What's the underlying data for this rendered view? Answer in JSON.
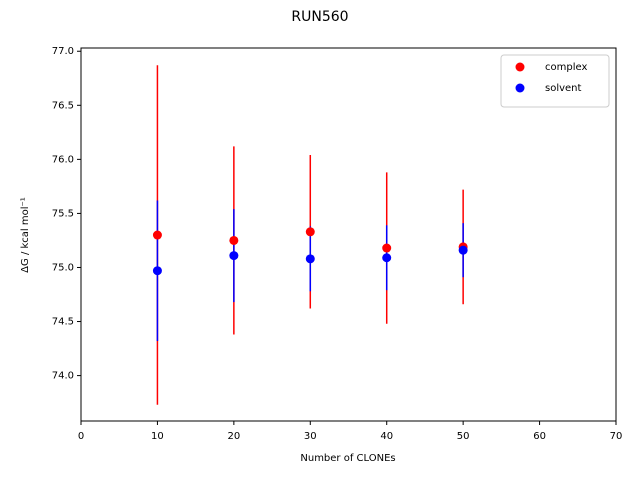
{
  "chart_data": {
    "type": "errorbar-scatter",
    "title": "RUN560",
    "x_label": "Number of CLONEs",
    "y_label": "ΔG / kcal mol⁻¹",
    "xlim": [
      0,
      70
    ],
    "xticks": [
      0,
      10,
      20,
      30,
      40,
      50,
      60,
      70
    ],
    "ylim": [
      73.58,
      77.03
    ],
    "yticks": [
      {
        "value": 74,
        "label": "74.0"
      },
      74.5,
      {
        "value": 75,
        "label": "75.0"
      },
      75.5,
      {
        "value": 76,
        "label": "76.0"
      },
      76.5,
      {
        "value": 77,
        "label": "77.0"
      }
    ],
    "legend": "upper right",
    "series": [
      {
        "name": "complex",
        "color": "#ff0000",
        "x": [
          10,
          20,
          30,
          40,
          50
        ],
        "values": [
          75.3,
          75.25,
          75.33,
          75.18,
          75.19
        ],
        "errors": [
          1.57,
          0.87,
          0.71,
          0.7,
          0.53
        ]
      },
      {
        "name": "solvent",
        "color": "#0000ff",
        "x": [
          10,
          20,
          30,
          40,
          50
        ],
        "values": [
          74.97,
          75.11,
          75.08,
          75.09,
          75.16
        ],
        "errors": [
          0.65,
          0.43,
          0.3,
          0.3,
          0.25
        ]
      }
    ]
  }
}
